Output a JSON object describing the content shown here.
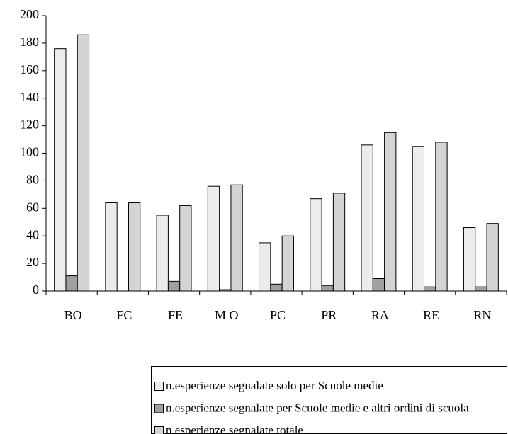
{
  "chart_data": {
    "type": "bar",
    "categories": [
      "BO",
      "FC",
      "FE",
      "M O",
      "PC",
      "PR",
      "RA",
      "RE",
      "RN"
    ],
    "series": [
      {
        "name": "n.esperienze segnalate solo per Scuole medie",
        "color": "#ececec",
        "values": [
          176,
          64,
          55,
          76,
          35,
          67,
          106,
          105,
          46
        ]
      },
      {
        "name": "n.esperienze segnalate per Scuole medie e altri ordini di scuola",
        "color": "#a0a0a0",
        "values": [
          11,
          0,
          7,
          1,
          5,
          4,
          9,
          3,
          3
        ]
      },
      {
        "name": "n.esperienze segnalate totale",
        "color": "#d4d4d4",
        "values": [
          186,
          64,
          62,
          77,
          40,
          71,
          115,
          108,
          49
        ]
      }
    ],
    "ylim": [
      0,
      200
    ],
    "yticks": [
      0,
      20,
      40,
      60,
      80,
      100,
      120,
      140,
      160,
      180,
      200
    ],
    "grid": false,
    "legend": "bottom"
  }
}
